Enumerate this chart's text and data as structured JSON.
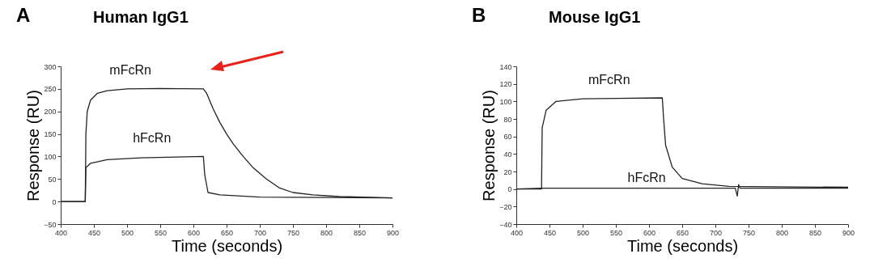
{
  "chart_data": [
    {
      "type": "line",
      "title": "Human IgG1",
      "annotations": [
        "A"
      ],
      "xlabel": "Time (seconds)",
      "ylabel": "Response (RU)",
      "xlim": [
        400,
        900
      ],
      "xticks": [
        400,
        450,
        500,
        550,
        600,
        650,
        700,
        750,
        800,
        850,
        900
      ],
      "ylim": [
        -50,
        300
      ],
      "yticks": [
        -50,
        0,
        50,
        100,
        150,
        200,
        250,
        300
      ],
      "series": [
        {
          "name": "mFcRn",
          "color": "#222222",
          "x": [
            400,
            437,
            438,
            440,
            445,
            455,
            470,
            500,
            550,
            615,
            620,
            630,
            640,
            650,
            660,
            675,
            690,
            710,
            730,
            750,
            780,
            820,
            900
          ],
          "values": [
            0,
            0,
            150,
            200,
            225,
            240,
            246,
            250,
            251,
            250,
            240,
            205,
            175,
            150,
            128,
            100,
            75,
            50,
            30,
            20,
            15,
            11,
            8
          ]
        },
        {
          "name": "hFcRn",
          "color": "#222222",
          "x": [
            400,
            437,
            438,
            445,
            470,
            520,
            615,
            617,
            622,
            640,
            700,
            900
          ],
          "values": [
            0,
            0,
            75,
            85,
            93,
            97,
            100,
            60,
            20,
            15,
            10,
            8
          ]
        }
      ]
    },
    {
      "type": "line",
      "title": "Mouse IgG1",
      "annotations": [
        "B"
      ],
      "xlabel": "Time (seconds)",
      "ylabel": "Response (RU)",
      "xlim": [
        400,
        900
      ],
      "xticks": [
        400,
        450,
        500,
        550,
        600,
        650,
        700,
        750,
        800,
        850,
        900
      ],
      "ylim": [
        -40,
        140
      ],
      "yticks": [
        -40,
        -20,
        0,
        20,
        40,
        60,
        80,
        100,
        120,
        140
      ],
      "series": [
        {
          "name": "mFcRn",
          "color": "#222222",
          "x": [
            400,
            438,
            439,
            445,
            460,
            500,
            620,
            622,
            625,
            635,
            650,
            680,
            720,
            900
          ],
          "values": [
            0,
            0,
            70,
            90,
            100,
            103,
            104,
            80,
            50,
            25,
            12,
            6,
            3,
            2
          ]
        },
        {
          "name": "hFcRn",
          "color": "#222222",
          "x": [
            400,
            438,
            500,
            600,
            730,
            733,
            735,
            737,
            800,
            900
          ],
          "values": [
            0,
            1,
            1,
            1,
            1,
            -8,
            5,
            1,
            1,
            1
          ]
        }
      ]
    }
  ]
}
